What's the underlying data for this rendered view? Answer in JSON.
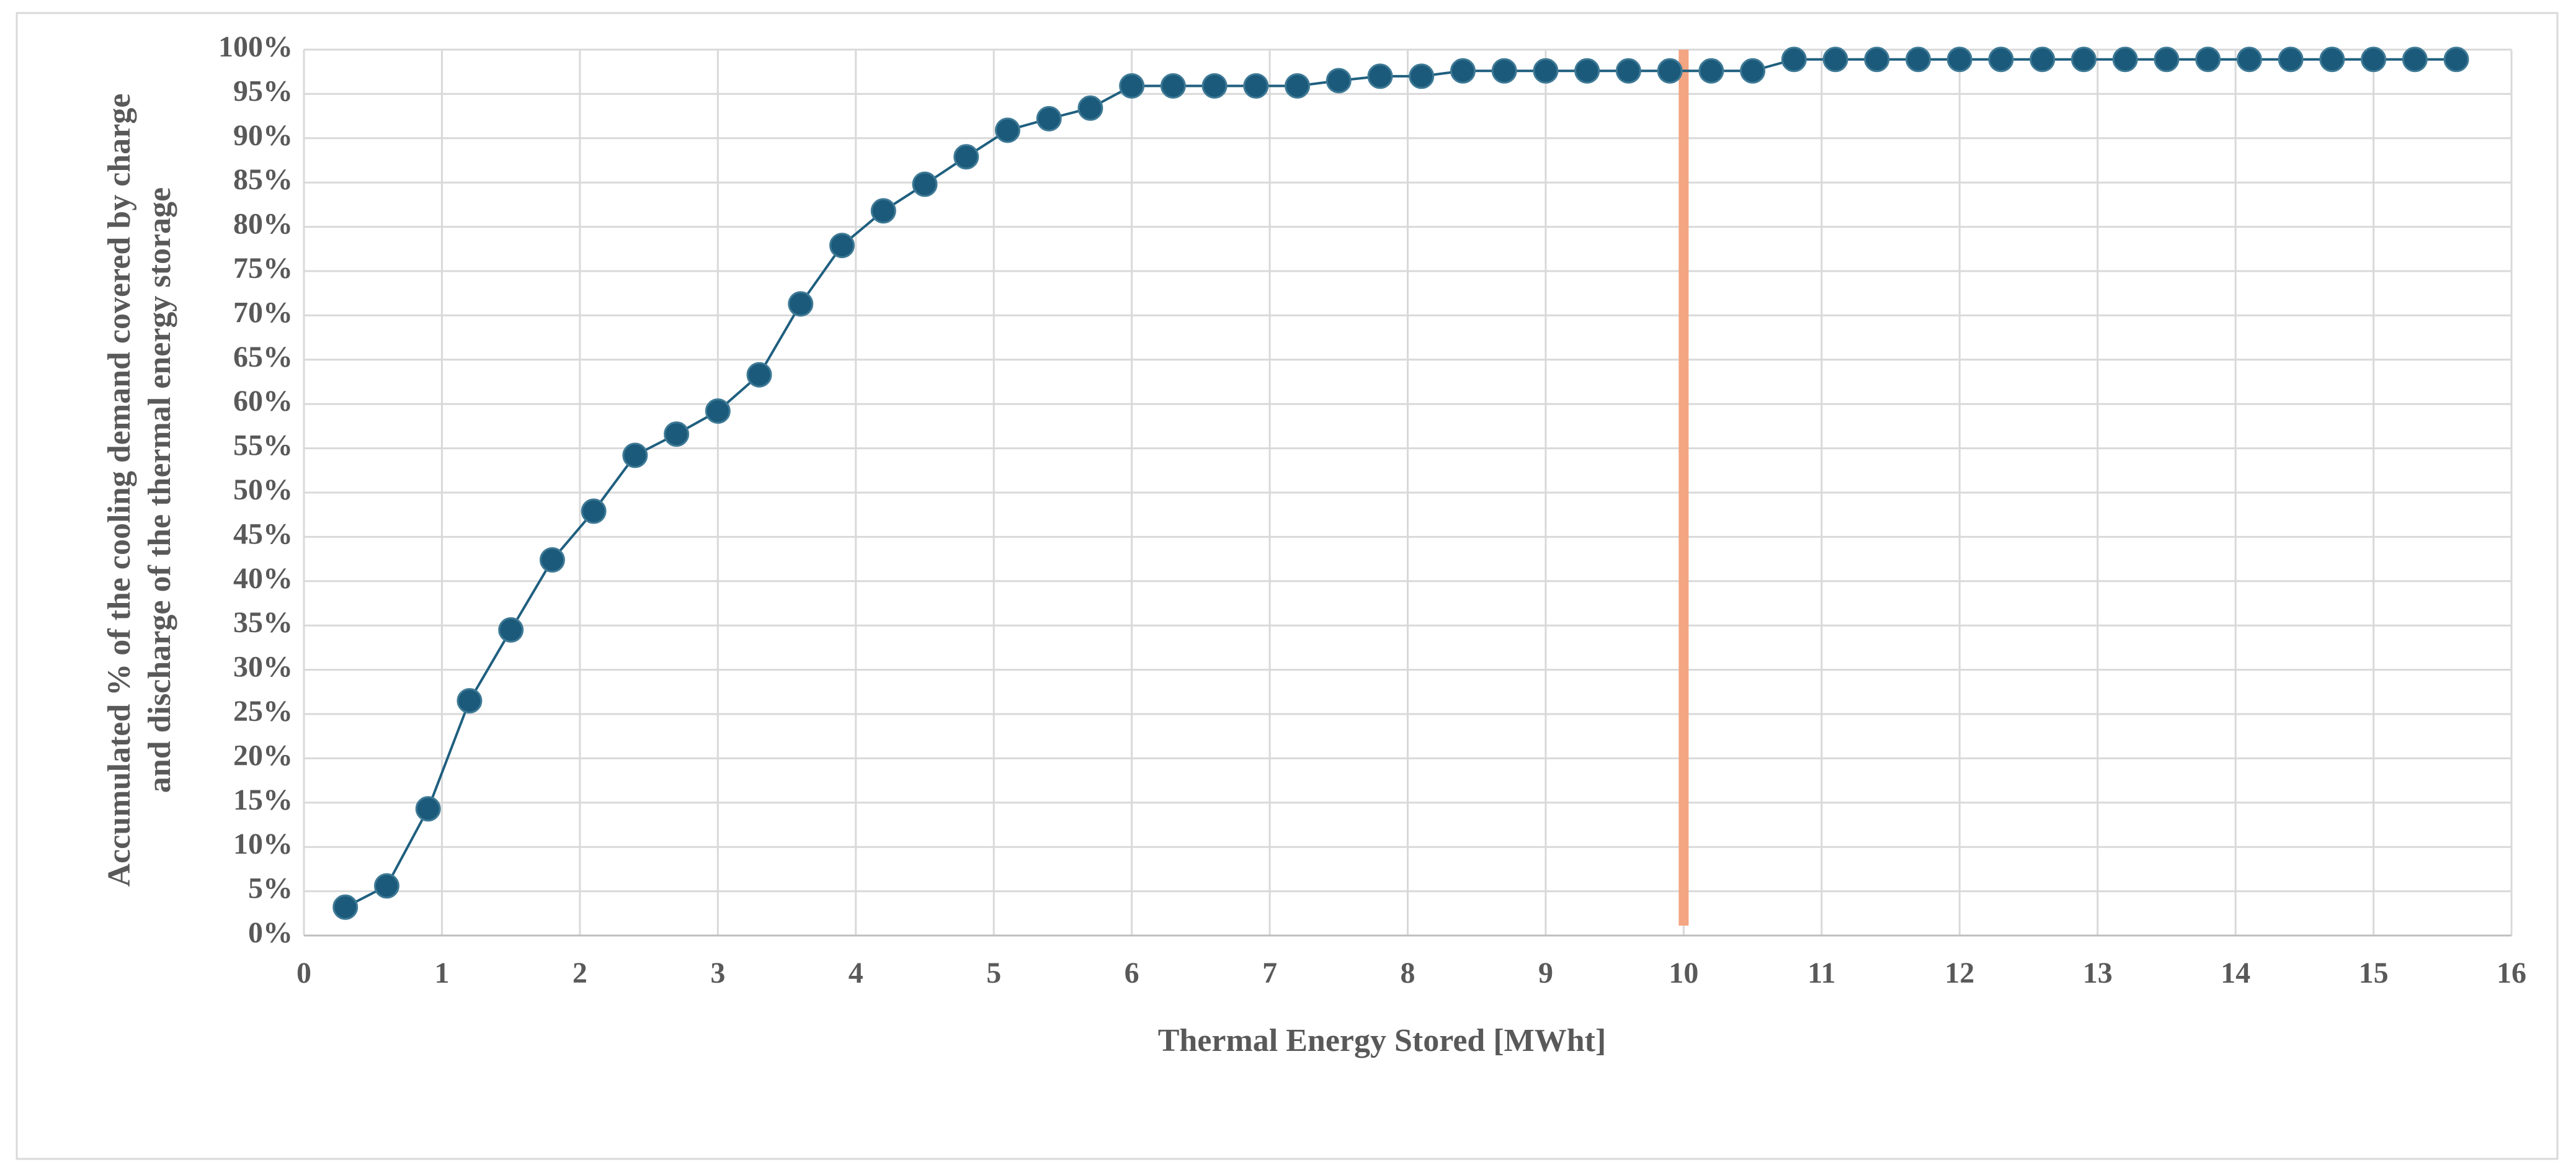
{
  "chart_data": {
    "type": "line",
    "xlabel": "Thermal Energy Stored [MWht]",
    "ylabel": [
      "Accumulated % of the cooling demand covered by charge",
      "and discharge of the thermal energy storage"
    ],
    "x": [
      0.3,
      0.6,
      0.9,
      1.2,
      1.5,
      1.8,
      2.1,
      2.4,
      2.7,
      3.0,
      3.3,
      3.6,
      3.9,
      4.2,
      4.5,
      4.8,
      5.1,
      5.4,
      5.7,
      6.0,
      6.3,
      6.6,
      6.9,
      7.2,
      7.5,
      7.8,
      8.1,
      8.4,
      8.7,
      9.0,
      9.3,
      9.6,
      9.9,
      10.2,
      10.5,
      10.8,
      11.1,
      11.4,
      11.7,
      12.0,
      12.3,
      12.6,
      12.9,
      13.2,
      13.5,
      13.8,
      14.1,
      14.4,
      14.7,
      15.0,
      15.3,
      15.6
    ],
    "values": [
      3.2,
      5.6,
      14.3,
      26.5,
      34.5,
      42.4,
      47.9,
      54.2,
      56.6,
      59.2,
      63.3,
      71.3,
      77.9,
      81.8,
      84.8,
      87.9,
      90.9,
      92.2,
      93.4,
      95.9,
      95.9,
      95.9,
      95.9,
      95.9,
      96.5,
      97.0,
      97.0,
      97.6,
      97.6,
      97.6,
      97.6,
      97.6,
      97.6,
      97.6,
      97.6,
      98.9,
      98.9,
      98.9,
      98.9,
      98.9,
      98.9,
      98.9,
      98.9,
      98.9,
      98.9,
      98.9,
      98.9,
      98.9,
      98.9,
      98.9,
      98.9,
      98.9
    ],
    "color": "#1f5f7f",
    "marker_color": "#1b5a7a",
    "reference_line": {
      "x": 10,
      "color": "#f4a582"
    },
    "xlim": [
      0,
      16
    ],
    "xticks": [
      0,
      1,
      2,
      3,
      4,
      5,
      6,
      7,
      8,
      9,
      10,
      11,
      12,
      13,
      14,
      15,
      16
    ],
    "ylim": [
      0,
      100
    ],
    "yticks": [
      {
        "value": 0,
        "label": "0%"
      },
      {
        "value": 5,
        "label": "5%"
      },
      {
        "value": 10,
        "label": "10%"
      },
      {
        "value": 15,
        "label": "15%"
      },
      {
        "value": 20,
        "label": "20%"
      },
      {
        "value": 25,
        "label": "25%"
      },
      {
        "value": 30,
        "label": "30%"
      },
      {
        "value": 35,
        "label": "35%"
      },
      {
        "value": 40,
        "label": "40%"
      },
      {
        "value": 45,
        "label": "45%"
      },
      {
        "value": 50,
        "label": "50%"
      },
      {
        "value": 55,
        "label": "55%"
      },
      {
        "value": 60,
        "label": "60%"
      },
      {
        "value": 65,
        "label": "65%"
      },
      {
        "value": 70,
        "label": "70%"
      },
      {
        "value": 75,
        "label": "75%"
      },
      {
        "value": 80,
        "label": "80%"
      },
      {
        "value": 85,
        "label": "85%"
      },
      {
        "value": 90,
        "label": "90%"
      },
      {
        "value": 95,
        "label": "95%"
      },
      {
        "value": 100,
        "label": "100%"
      }
    ],
    "grid": true
  }
}
